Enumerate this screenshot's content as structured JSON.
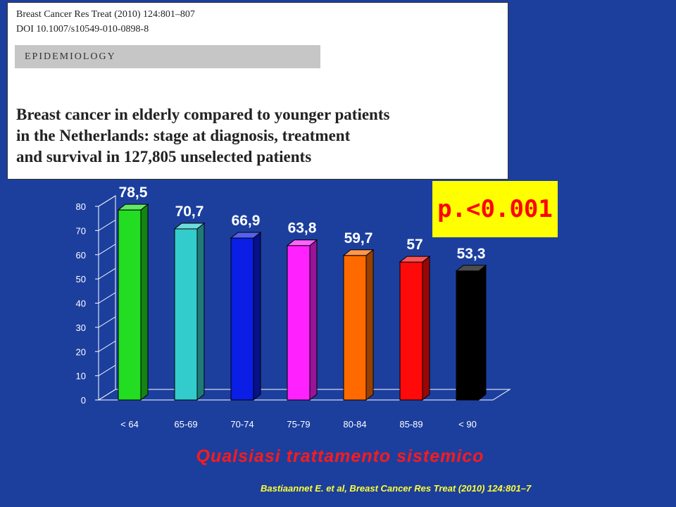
{
  "paper": {
    "journal": "Breast Cancer Res Treat (2010) 124:801–807",
    "doi": "DOI 10.1007/s10549-010-0898-8",
    "section": "EPIDEMIOLOGY",
    "title_lines": [
      "Breast cancer in elderly compared to younger patients",
      "in the Netherlands: stage at diagnosis, treatment",
      "and survival in 127,805 unselected patients"
    ]
  },
  "pvalue": "p.<0.001",
  "caption": "Qualsiasi trattamento sistemico",
  "citation": "Bastiaannet E. et al, Breast Cancer Res Treat (2010) 124:801–7",
  "colors": {
    "background": "#1c3f9e",
    "pvalue_box": "#ffff00",
    "pvalue_text": "#ff0000",
    "caption": "#ff1a1a",
    "citation": "#ffff33"
  },
  "chart_data": {
    "type": "bar",
    "categories": [
      "< 64",
      "65-69",
      "70-74",
      "75-79",
      "80-84",
      "85-89",
      "< 90"
    ],
    "values": [
      78.5,
      70.7,
      66.9,
      63.8,
      59.7,
      57,
      53.3
    ],
    "value_labels": [
      "78,5",
      "70,7",
      "66,9",
      "63,8",
      "59,7",
      "57",
      "53,3"
    ],
    "bar_colors": [
      "#22dd22",
      "#33cccc",
      "#0a1ee6",
      "#ff22ff",
      "#ff6a00",
      "#ff0a0a",
      "#000000"
    ],
    "yticks": [
      "0",
      "10",
      "20",
      "30",
      "40",
      "50",
      "60",
      "70",
      "80"
    ],
    "ylim": [
      0,
      80
    ],
    "title": "",
    "xlabel": "",
    "ylabel": "",
    "grid": false,
    "style": "3d"
  }
}
